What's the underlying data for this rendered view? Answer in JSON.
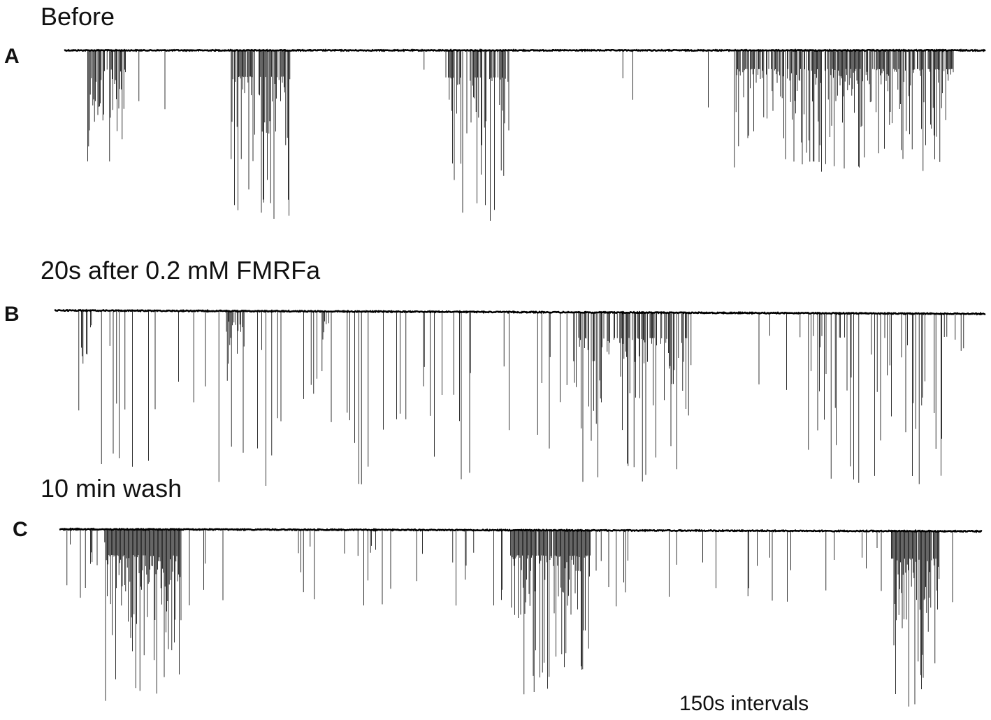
{
  "panels": [
    {
      "label": "A",
      "title": "Before"
    },
    {
      "label": "B",
      "title": "20s after 0.2 mM FMRFa"
    },
    {
      "label": "C",
      "title": "10 min wash"
    }
  ],
  "scale_note": "150s intervals"
}
